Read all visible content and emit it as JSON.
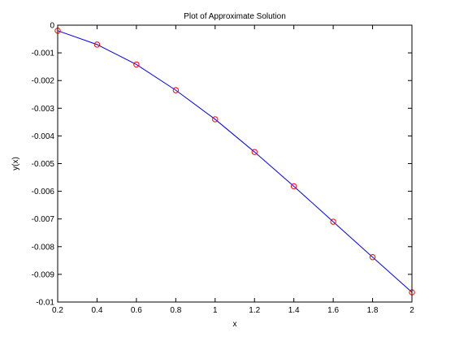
{
  "chart_data": {
    "type": "line",
    "title": "Plot of Approximate Solution",
    "xlabel": "x",
    "ylabel": "y(x)",
    "xlim": [
      0.2,
      2
    ],
    "ylim": [
      -0.01,
      0
    ],
    "x_ticks": [
      0.2,
      0.4,
      0.6,
      0.8,
      1,
      1.2,
      1.4,
      1.6,
      1.8,
      2
    ],
    "x_tick_labels": [
      "0.2",
      "0.4",
      "0.6",
      "0.8",
      "1",
      "1.2",
      "1.4",
      "1.6",
      "1.8",
      "2"
    ],
    "y_ticks": [
      0,
      -0.001,
      -0.002,
      -0.003,
      -0.004,
      -0.005,
      -0.006,
      -0.007,
      -0.008,
      -0.009,
      -0.01
    ],
    "y_tick_labels": [
      "0",
      "-0.001",
      "-0.002",
      "-0.003",
      "-0.004",
      "-0.005",
      "-0.006",
      "-0.007",
      "-0.008",
      "-0.009",
      "-0.01"
    ],
    "grid": false,
    "legend": "none",
    "series": [
      {
        "style": "line",
        "color": "#0000ff",
        "x": [
          0.2,
          0.4,
          0.6,
          0.8,
          1.0,
          1.2,
          1.4,
          1.6,
          1.8,
          2.0
        ],
        "y": [
          -0.0002,
          -0.0007,
          -0.00142,
          -0.00235,
          -0.0034,
          -0.00458,
          -0.00582,
          -0.0071,
          -0.00838,
          -0.00965
        ]
      },
      {
        "style": "markers",
        "marker": "circle",
        "color": "#ff0000",
        "x": [
          0.2,
          0.4,
          0.6,
          0.8,
          1.0,
          1.2,
          1.4,
          1.6,
          1.8,
          2.0
        ],
        "y": [
          -0.0002,
          -0.0007,
          -0.00142,
          -0.00235,
          -0.0034,
          -0.00458,
          -0.00582,
          -0.0071,
          -0.00838,
          -0.00965
        ]
      }
    ]
  }
}
